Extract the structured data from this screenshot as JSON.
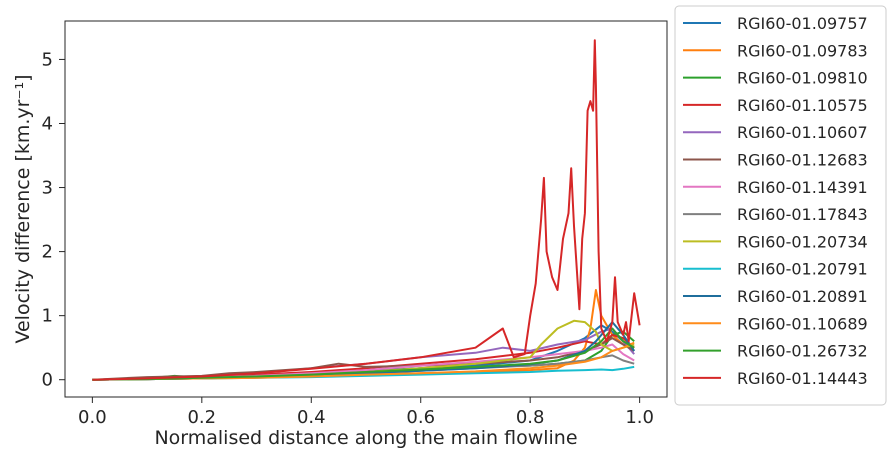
{
  "chart_data": {
    "type": "line",
    "xlabel": "Normalised distance along the main flowline",
    "ylabel": "Velocity difference [km.yr⁻¹]",
    "xlim": [
      -0.05,
      1.05
    ],
    "ylim": [
      -0.27,
      5.6
    ],
    "x_ticks": [
      0.0,
      0.2,
      0.4,
      0.6,
      0.8,
      1.0
    ],
    "x_tick_labels": [
      "0.0",
      "0.2",
      "0.4",
      "0.6",
      "0.8",
      "1.0"
    ],
    "y_ticks": [
      0,
      1,
      2,
      3,
      4,
      5
    ],
    "y_tick_labels": [
      "0",
      "1",
      "2",
      "3",
      "4",
      "5"
    ],
    "grid": false,
    "legend_position": "outside-right",
    "series": [
      {
        "name": "RGI60-01.09757",
        "color": "#1f77b4",
        "x": [
          0.0,
          0.1,
          0.2,
          0.3,
          0.4,
          0.5,
          0.6,
          0.7,
          0.8,
          0.85,
          0.9,
          0.93,
          0.95,
          0.97,
          0.99
        ],
        "y": [
          0.0,
          0.01,
          0.02,
          0.04,
          0.08,
          0.14,
          0.18,
          0.22,
          0.3,
          0.45,
          0.65,
          0.85,
          0.75,
          0.6,
          0.45
        ]
      },
      {
        "name": "RGI60-01.09783",
        "color": "#ff7f0e",
        "x": [
          0.0,
          0.1,
          0.2,
          0.3,
          0.4,
          0.5,
          0.6,
          0.7,
          0.8,
          0.85,
          0.88,
          0.9,
          0.91,
          0.92,
          0.93,
          0.95,
          0.97,
          0.99
        ],
        "y": [
          0.0,
          0.01,
          0.02,
          0.03,
          0.05,
          0.08,
          0.1,
          0.12,
          0.15,
          0.18,
          0.3,
          0.5,
          0.8,
          1.4,
          1.0,
          0.7,
          0.55,
          0.5
        ]
      },
      {
        "name": "RGI60-01.09810",
        "color": "#2ca02c",
        "x": [
          0.0,
          0.1,
          0.15,
          0.2,
          0.3,
          0.4,
          0.5,
          0.6,
          0.7,
          0.8,
          0.85,
          0.9,
          0.93,
          0.95,
          0.97,
          0.99
        ],
        "y": [
          0.0,
          0.02,
          0.06,
          0.03,
          0.05,
          0.08,
          0.12,
          0.18,
          0.2,
          0.22,
          0.25,
          0.3,
          0.45,
          0.7,
          0.75,
          0.6
        ]
      },
      {
        "name": "RGI60-01.10575",
        "color": "#d62728",
        "x": [
          0.0,
          0.1,
          0.2,
          0.3,
          0.4,
          0.5,
          0.6,
          0.7,
          0.8,
          0.85,
          0.9,
          0.93,
          0.95,
          0.97,
          0.99
        ],
        "y": [
          0.0,
          0.02,
          0.04,
          0.08,
          0.12,
          0.18,
          0.25,
          0.32,
          0.42,
          0.5,
          0.6,
          0.55,
          0.7,
          0.65,
          0.5
        ]
      },
      {
        "name": "RGI60-01.10607",
        "color": "#9467bd",
        "x": [
          0.0,
          0.1,
          0.2,
          0.3,
          0.4,
          0.5,
          0.6,
          0.7,
          0.75,
          0.8,
          0.85,
          0.9,
          0.93,
          0.95,
          0.97,
          0.99
        ],
        "y": [
          0.0,
          0.02,
          0.05,
          0.1,
          0.18,
          0.25,
          0.35,
          0.42,
          0.5,
          0.45,
          0.55,
          0.62,
          0.75,
          0.8,
          0.6,
          0.4
        ]
      },
      {
        "name": "RGI60-01.12683",
        "color": "#8c564b",
        "x": [
          0.0,
          0.1,
          0.2,
          0.25,
          0.3,
          0.4,
          0.45,
          0.5,
          0.6,
          0.7,
          0.8,
          0.85,
          0.9,
          0.93,
          0.95,
          0.97,
          0.99
        ],
        "y": [
          0.0,
          0.04,
          0.06,
          0.1,
          0.12,
          0.18,
          0.25,
          0.2,
          0.22,
          0.25,
          0.3,
          0.35,
          0.45,
          0.55,
          0.65,
          0.55,
          0.45
        ]
      },
      {
        "name": "RGI60-01.14391",
        "color": "#e377c2",
        "x": [
          0.0,
          0.1,
          0.2,
          0.3,
          0.4,
          0.5,
          0.6,
          0.7,
          0.8,
          0.85,
          0.9,
          0.93,
          0.95,
          0.97,
          0.99
        ],
        "y": [
          0.0,
          0.01,
          0.03,
          0.06,
          0.1,
          0.15,
          0.22,
          0.28,
          0.35,
          0.4,
          0.45,
          0.5,
          0.55,
          0.4,
          0.3
        ]
      },
      {
        "name": "RGI60-01.17843",
        "color": "#7f7f7f",
        "x": [
          0.0,
          0.1,
          0.2,
          0.3,
          0.4,
          0.5,
          0.6,
          0.7,
          0.8,
          0.85,
          0.9,
          0.93,
          0.95,
          0.97,
          0.99
        ],
        "y": [
          0.0,
          0.01,
          0.02,
          0.04,
          0.07,
          0.1,
          0.14,
          0.18,
          0.22,
          0.25,
          0.3,
          0.35,
          0.38,
          0.3,
          0.25
        ]
      },
      {
        "name": "RGI60-01.20734",
        "color": "#bcbd22",
        "x": [
          0.0,
          0.1,
          0.2,
          0.3,
          0.4,
          0.5,
          0.6,
          0.7,
          0.8,
          0.82,
          0.85,
          0.88,
          0.9,
          0.92,
          0.93,
          0.95,
          0.97,
          0.99
        ],
        "y": [
          0.0,
          0.01,
          0.03,
          0.05,
          0.08,
          0.12,
          0.18,
          0.25,
          0.35,
          0.55,
          0.8,
          0.92,
          0.9,
          0.75,
          0.55,
          0.45,
          0.5,
          0.55
        ]
      },
      {
        "name": "RGI60-01.20791",
        "color": "#17becf",
        "x": [
          0.0,
          0.1,
          0.2,
          0.3,
          0.4,
          0.5,
          0.6,
          0.7,
          0.8,
          0.85,
          0.9,
          0.93,
          0.95,
          0.97,
          0.99
        ],
        "y": [
          0.0,
          0.01,
          0.02,
          0.03,
          0.04,
          0.06,
          0.08,
          0.1,
          0.12,
          0.14,
          0.15,
          0.16,
          0.15,
          0.17,
          0.2
        ]
      },
      {
        "name": "RGI60-01.20891",
        "color": "#1f6e9c",
        "x": [
          0.0,
          0.1,
          0.2,
          0.3,
          0.4,
          0.5,
          0.6,
          0.7,
          0.8,
          0.85,
          0.9,
          0.92,
          0.95,
          0.97,
          0.99
        ],
        "y": [
          0.0,
          0.01,
          0.02,
          0.04,
          0.06,
          0.1,
          0.14,
          0.18,
          0.24,
          0.3,
          0.45,
          0.6,
          0.9,
          0.7,
          0.45
        ]
      },
      {
        "name": "RGI60-01.10689",
        "color": "#ff8c1a",
        "x": [
          0.0,
          0.1,
          0.2,
          0.3,
          0.4,
          0.5,
          0.6,
          0.7,
          0.8,
          0.85,
          0.9,
          0.93,
          0.95,
          0.97,
          0.99
        ],
        "y": [
          0.0,
          0.01,
          0.02,
          0.03,
          0.05,
          0.08,
          0.1,
          0.13,
          0.18,
          0.22,
          0.28,
          0.35,
          0.45,
          0.5,
          0.58
        ]
      },
      {
        "name": "RGI60-01.26732",
        "color": "#33a02c",
        "x": [
          0.0,
          0.1,
          0.2,
          0.3,
          0.4,
          0.5,
          0.6,
          0.7,
          0.8,
          0.85,
          0.9,
          0.93,
          0.95,
          0.97,
          0.99
        ],
        "y": [
          0.0,
          0.01,
          0.03,
          0.05,
          0.08,
          0.12,
          0.16,
          0.2,
          0.25,
          0.3,
          0.42,
          0.6,
          0.8,
          0.6,
          0.5
        ]
      },
      {
        "name": "RGI60-01.14443",
        "color": "#d62728",
        "x": [
          0.0,
          0.1,
          0.2,
          0.3,
          0.4,
          0.5,
          0.6,
          0.7,
          0.75,
          0.77,
          0.79,
          0.8,
          0.81,
          0.82,
          0.825,
          0.83,
          0.84,
          0.85,
          0.86,
          0.87,
          0.875,
          0.88,
          0.89,
          0.895,
          0.9,
          0.905,
          0.91,
          0.915,
          0.918,
          0.92,
          0.925,
          0.93,
          0.94,
          0.95,
          0.955,
          0.96,
          0.97,
          0.975,
          0.98,
          0.99,
          0.995,
          1.0
        ],
        "y": [
          0.0,
          0.02,
          0.05,
          0.1,
          0.17,
          0.25,
          0.35,
          0.5,
          0.8,
          0.35,
          0.4,
          1.0,
          1.5,
          2.5,
          3.15,
          2.0,
          1.6,
          1.4,
          2.2,
          2.6,
          3.3,
          2.4,
          1.1,
          2.2,
          2.6,
          4.2,
          4.35,
          4.2,
          5.3,
          4.6,
          2.0,
          0.8,
          0.6,
          0.9,
          1.6,
          0.9,
          0.7,
          0.9,
          0.6,
          1.35,
          1.1,
          0.85
        ]
      }
    ]
  }
}
